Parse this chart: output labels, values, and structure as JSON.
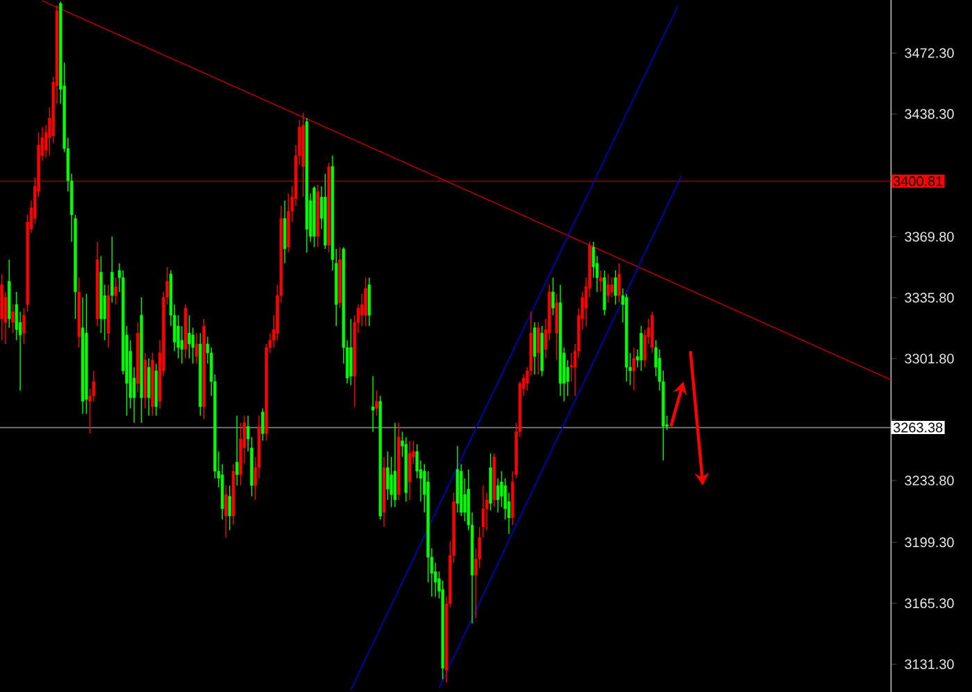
{
  "chart_data": {
    "type": "candlestick",
    "categories": [
      null,
      null,
      null,
      null,
      null,
      null,
      null,
      null,
      null,
      null,
      null,
      null,
      null,
      null,
      null,
      null,
      null,
      null,
      null,
      null,
      null,
      null,
      null,
      null,
      null,
      null,
      null,
      null,
      null,
      null,
      null,
      null,
      null,
      null,
      null,
      null,
      null,
      null,
      null,
      null,
      null,
      null,
      null,
      null,
      null,
      null,
      null,
      null,
      null,
      null,
      null,
      null,
      null,
      null,
      null,
      null,
      null,
      null,
      null,
      null,
      null,
      null,
      null,
      null,
      null,
      null,
      null,
      null,
      null,
      null,
      null,
      null,
      null,
      null,
      null,
      null,
      null,
      null,
      null,
      null,
      null,
      null,
      null,
      null,
      null,
      null,
      null,
      null,
      null,
      null,
      null,
      null,
      null,
      null,
      null,
      null,
      null,
      null,
      null,
      null,
      null,
      null,
      null,
      null,
      null,
      null,
      null,
      null,
      null,
      null,
      null,
      null,
      null,
      null,
      null,
      null,
      null,
      null,
      null,
      null,
      null,
      null,
      null,
      null,
      null,
      null,
      null,
      null,
      null,
      null,
      null,
      null,
      null,
      null,
      null,
      null,
      null,
      null,
      null,
      null,
      null,
      null,
      null,
      null,
      null,
      null,
      null,
      null,
      null,
      null,
      null,
      null,
      null,
      null,
      null,
      null,
      null,
      null,
      null,
      null,
      null,
      null,
      null,
      null,
      null,
      null,
      null,
      null,
      null,
      null,
      null,
      null,
      null,
      null,
      null,
      null,
      null,
      null,
      null,
      null,
      null,
      null,
      null,
      null,
      null,
      null,
      null,
      null,
      null,
      null,
      null,
      null,
      null,
      null,
      null,
      null,
      null,
      null,
      null,
      null,
      null,
      null,
      null,
      null,
      null,
      null,
      null,
      null,
      null,
      null,
      null,
      null,
      null,
      null,
      null,
      null,
      null,
      null,
      null,
      null,
      null,
      null,
      null,
      null,
      null,
      null,
      null,
      null,
      null,
      null,
      null,
      null,
      null,
      null,
      null,
      null,
      null,
      null,
      null,
      null,
      null,
      null,
      null
    ],
    "ohlc": [
      [
        3324,
        3349,
        3312,
        3343
      ],
      [
        3322,
        3339,
        3310,
        3336
      ],
      [
        3345,
        3357,
        3319,
        3324
      ],
      [
        3322,
        3332,
        3316,
        3328
      ],
      [
        3332,
        3339,
        3312,
        3318
      ],
      [
        3322,
        3328,
        3284,
        3315
      ],
      [
        3316,
        3330,
        3310,
        3326
      ],
      [
        3332,
        3382,
        3328,
        3378
      ],
      [
        3374,
        3390,
        3372,
        3386
      ],
      [
        3380,
        3403,
        3377,
        3398
      ],
      [
        3395,
        3428,
        3392,
        3421
      ],
      [
        3415,
        3431,
        3412,
        3425
      ],
      [
        3418,
        3432,
        3414,
        3428
      ],
      [
        3425,
        3442,
        3415,
        3436
      ],
      [
        3426,
        3459,
        3422,
        3456
      ],
      [
        3454,
        3499,
        3444,
        3496
      ],
      [
        3500,
        3501,
        3444,
        3452
      ],
      [
        3454,
        3467,
        3417,
        3419
      ],
      [
        3419,
        3425,
        3395,
        3401
      ],
      [
        3401,
        3405,
        3367,
        3382
      ],
      [
        3380,
        3382,
        3324,
        3339
      ],
      [
        3314,
        3347,
        3308,
        3339
      ],
      [
        3319,
        3336,
        3271,
        3278
      ],
      [
        3316,
        3338,
        3271,
        3279
      ],
      [
        3278,
        3285,
        3260,
        3281
      ],
      [
        3281,
        3295,
        3278,
        3289
      ],
      [
        3324,
        3367,
        3320,
        3357
      ],
      [
        3350,
        3359,
        3316,
        3324
      ],
      [
        3337,
        3343,
        3312,
        3324
      ],
      [
        3316,
        3343,
        3308,
        3337
      ],
      [
        3350,
        3370,
        3333,
        3337
      ],
      [
        3337,
        3347,
        3332,
        3342
      ],
      [
        3351,
        3355,
        3339,
        3347
      ],
      [
        3347,
        3351,
        3293,
        3295
      ],
      [
        3315,
        3320,
        3270,
        3288
      ],
      [
        3306,
        3312,
        3274,
        3280
      ],
      [
        3291,
        3297,
        3266,
        3280
      ],
      [
        3288,
        3322,
        3283,
        3316
      ],
      [
        3326,
        3336,
        3266,
        3280
      ],
      [
        3280,
        3305,
        3274,
        3301
      ],
      [
        3297,
        3302,
        3270,
        3280
      ],
      [
        3275,
        3305,
        3270,
        3301
      ],
      [
        3295,
        3299,
        3270,
        3275
      ],
      [
        3278,
        3312,
        3274,
        3305
      ],
      [
        3295,
        3339,
        3292,
        3336
      ],
      [
        3336,
        3353,
        3332,
        3345
      ],
      [
        3349,
        3351,
        3320,
        3326
      ],
      [
        3326,
        3332,
        3306,
        3311
      ],
      [
        3320,
        3326,
        3302,
        3308
      ],
      [
        3312,
        3320,
        3299,
        3307
      ],
      [
        3307,
        3332,
        3302,
        3330
      ],
      [
        3316,
        3326,
        3302,
        3310
      ],
      [
        3315,
        3319,
        3299,
        3308
      ],
      [
        3303,
        3316,
        3299,
        3310
      ],
      [
        3310,
        3316,
        3270,
        3275
      ],
      [
        3275,
        3324,
        3268,
        3320
      ],
      [
        3310,
        3314,
        3299,
        3305
      ],
      [
        3305,
        3308,
        3281,
        3289
      ],
      [
        3289,
        3293,
        3235,
        3239
      ],
      [
        3239,
        3250,
        3230,
        3235
      ],
      [
        3237,
        3243,
        3212,
        3218
      ],
      [
        3214,
        3231,
        3202,
        3226
      ],
      [
        3225,
        3231,
        3206,
        3214
      ],
      [
        3214,
        3243,
        3209,
        3239
      ],
      [
        3244,
        3270,
        3231,
        3237
      ],
      [
        3237,
        3266,
        3231,
        3257
      ],
      [
        3252,
        3270,
        3243,
        3266
      ],
      [
        3264,
        3270,
        3250,
        3257
      ],
      [
        3252,
        3258,
        3225,
        3231
      ],
      [
        3231,
        3247,
        3223,
        3241
      ],
      [
        3241,
        3270,
        3235,
        3264
      ],
      [
        3272,
        3274,
        3256,
        3260
      ],
      [
        3260,
        3310,
        3256,
        3308
      ],
      [
        3308,
        3316,
        3305,
        3312
      ],
      [
        3312,
        3326,
        3308,
        3318
      ],
      [
        3316,
        3343,
        3312,
        3337
      ],
      [
        3337,
        3387,
        3333,
        3380
      ],
      [
        3380,
        3390,
        3355,
        3363
      ],
      [
        3364,
        3394,
        3361,
        3384
      ],
      [
        3384,
        3398,
        3378,
        3392
      ],
      [
        3391,
        3421,
        3387,
        3415
      ],
      [
        3415,
        3435,
        3410,
        3431
      ],
      [
        3409,
        3439,
        3392,
        3432
      ],
      [
        3434,
        3436,
        3361,
        3374
      ],
      [
        3390,
        3394,
        3367,
        3370
      ],
      [
        3397,
        3398,
        3364,
        3370
      ],
      [
        3370,
        3399,
        3364,
        3395
      ],
      [
        3392,
        3398,
        3374,
        3380
      ],
      [
        3392,
        3405,
        3363,
        3365
      ],
      [
        3365,
        3411,
        3361,
        3409
      ],
      [
        3409,
        3415,
        3351,
        3357
      ],
      [
        3355,
        3363,
        3320,
        3332
      ],
      [
        3333,
        3364,
        3330,
        3357
      ],
      [
        3363,
        3364,
        3299,
        3308
      ],
      [
        3308,
        3312,
        3288,
        3291
      ],
      [
        3308,
        3324,
        3287,
        3292
      ],
      [
        3292,
        3326,
        3275,
        3322
      ],
      [
        3322,
        3332,
        3316,
        3330
      ],
      [
        3326,
        3338,
        3320,
        3332
      ],
      [
        3326,
        3347,
        3320,
        3341
      ],
      [
        3343,
        3347,
        3320,
        3326
      ],
      [
        3275,
        3292,
        3261,
        3273
      ],
      [
        3274,
        3284,
        3270,
        3278
      ],
      [
        3278,
        3281,
        3212,
        3214
      ],
      [
        3216,
        3247,
        3208,
        3241
      ],
      [
        3241,
        3250,
        3223,
        3229
      ],
      [
        3237,
        3247,
        3219,
        3226
      ],
      [
        3239,
        3266,
        3219,
        3223
      ],
      [
        3226,
        3266,
        3223,
        3258
      ],
      [
        3256,
        3261,
        3247,
        3253
      ],
      [
        3254,
        3258,
        3222,
        3227
      ],
      [
        3233,
        3256,
        3223,
        3249
      ],
      [
        3247,
        3256,
        3243,
        3250
      ],
      [
        3250,
        3254,
        3235,
        3239
      ],
      [
        3240,
        3245,
        3222,
        3235
      ],
      [
        3239,
        3243,
        3216,
        3226
      ],
      [
        3233,
        3239,
        3177,
        3191
      ],
      [
        3191,
        3196,
        3169,
        3182
      ],
      [
        3183,
        3188,
        3169,
        3177
      ],
      [
        3179,
        3183,
        3168,
        3172
      ],
      [
        3173,
        3178,
        3123,
        3129
      ],
      [
        3128,
        3169,
        3121,
        3165
      ],
      [
        3165,
        3200,
        3163,
        3192
      ],
      [
        3192,
        3227,
        3188,
        3222
      ],
      [
        3240,
        3253,
        3216,
        3221
      ],
      [
        3239,
        3243,
        3214,
        3216
      ],
      [
        3226,
        3235,
        3211,
        3216
      ],
      [
        3229,
        3240,
        3206,
        3209
      ],
      [
        3209,
        3216,
        3154,
        3181
      ],
      [
        3181,
        3196,
        3157,
        3190
      ],
      [
        3190,
        3208,
        3185,
        3202
      ],
      [
        3208,
        3231,
        3202,
        3218
      ],
      [
        3218,
        3227,
        3206,
        3223
      ],
      [
        3241,
        3249,
        3217,
        3221
      ],
      [
        3223,
        3249,
        3219,
        3247
      ],
      [
        3231,
        3235,
        3216,
        3223
      ],
      [
        3233,
        3239,
        3219,
        3225
      ],
      [
        3231,
        3235,
        3212,
        3218
      ],
      [
        3222,
        3227,
        3204,
        3213
      ],
      [
        3213,
        3239,
        3209,
        3233
      ],
      [
        3237,
        3266,
        3235,
        3261
      ],
      [
        3261,
        3289,
        3258,
        3288
      ],
      [
        3285,
        3293,
        3281,
        3291
      ],
      [
        3288,
        3297,
        3284,
        3295
      ],
      [
        3295,
        3328,
        3292,
        3316
      ],
      [
        3319,
        3322,
        3293,
        3303
      ],
      [
        3305,
        3322,
        3293,
        3319
      ],
      [
        3316,
        3320,
        3292,
        3295
      ],
      [
        3307,
        3324,
        3302,
        3318
      ],
      [
        3316,
        3343,
        3312,
        3339
      ],
      [
        3339,
        3347,
        3326,
        3330
      ],
      [
        3316,
        3338,
        3301,
        3333
      ],
      [
        3333,
        3343,
        3281,
        3288
      ],
      [
        3305,
        3308,
        3278,
        3288
      ],
      [
        3297,
        3301,
        3281,
        3289
      ],
      [
        3297,
        3305,
        3289,
        3298
      ],
      [
        3297,
        3310,
        3281,
        3306
      ],
      [
        3306,
        3330,
        3302,
        3326
      ],
      [
        3324,
        3339,
        3318,
        3336
      ],
      [
        3330,
        3347,
        3320,
        3342
      ],
      [
        3341,
        3367,
        3336,
        3365
      ],
      [
        3364,
        3367,
        3347,
        3353
      ],
      [
        3355,
        3359,
        3339,
        3347
      ],
      [
        3345,
        3351,
        3339,
        3347
      ],
      [
        3347,
        3351,
        3326,
        3329
      ],
      [
        3337,
        3349,
        3333,
        3343
      ],
      [
        3339,
        3347,
        3336,
        3343
      ],
      [
        3347,
        3351,
        3332,
        3337
      ],
      [
        3337,
        3355,
        3333,
        3349
      ],
      [
        3337,
        3341,
        3322,
        3332
      ],
      [
        3336,
        3338,
        3289,
        3297
      ],
      [
        3297,
        3305,
        3287,
        3295
      ],
      [
        3295,
        3308,
        3284,
        3302
      ],
      [
        3303,
        3307,
        3297,
        3301
      ],
      [
        3316,
        3320,
        3295,
        3301
      ],
      [
        3301,
        3318,
        3297,
        3315
      ],
      [
        3314,
        3324,
        3310,
        3319
      ],
      [
        3308,
        3328,
        3305,
        3326
      ],
      [
        3308,
        3312,
        3292,
        3297
      ],
      [
        3302,
        3307,
        3284,
        3289
      ],
      [
        3289,
        3295,
        3245,
        3264
      ],
      [
        3265,
        3270,
        3262,
        3264
      ],
      null,
      null,
      null,
      null,
      null,
      null,
      null,
      null,
      null,
      null,
      null,
      null,
      null,
      null,
      null,
      null,
      null,
      null,
      null,
      null,
      null,
      null,
      null,
      null,
      null,
      null,
      null,
      null,
      null,
      null,
      null,
      null,
      null,
      null,
      null,
      null,
      null,
      null,
      null,
      null,
      null,
      null,
      null,
      null,
      null,
      null,
      null,
      null,
      null,
      null,
      null,
      null,
      null,
      null,
      null,
      null,
      null,
      null,
      null,
      null,
      null
    ],
    "colors": [
      "#ff0000",
      "#ff0000",
      "#00ff00",
      "#ff0000",
      "#00ff00",
      "#00ff00",
      "#ff0000",
      "#ff0000",
      "#ff0000",
      "#ff0000",
      "#ff0000",
      "#ff0000",
      "#ff0000",
      "#ff0000",
      "#ff0000",
      "#ff0000",
      "#00ff00",
      "#00ff00",
      "#00ff00",
      "#00ff00",
      "#00ff00",
      "#ff0000",
      "#00ff00",
      "#00ff00",
      "#ff0000",
      "#ff0000",
      "#ff0000",
      "#00ff00",
      "#00ff00",
      "#ff0000",
      "#00ff00",
      "#ff0000",
      "#00ff00",
      "#00ff00",
      "#00ff00",
      "#00ff00",
      "#00ff00",
      "#ff0000",
      "#00ff00",
      "#ff0000",
      "#00ff00",
      "#ff0000",
      "#00ff00",
      "#ff0000",
      "#ff0000",
      "#ff0000",
      "#00ff00",
      "#00ff00",
      "#00ff00",
      "#00ff00",
      "#ff0000",
      "#00ff00",
      "#00ff00",
      "#ff0000",
      "#00ff00",
      "#ff0000",
      "#00ff00",
      "#00ff00",
      "#00ff00",
      "#00ff00",
      "#00ff00",
      "#ff0000",
      "#00ff00",
      "#ff0000",
      "#00ff00",
      "#ff0000",
      "#ff0000",
      "#00ff00",
      "#00ff00",
      "#ff0000",
      "#ff0000",
      "#00ff00",
      "#ff0000",
      "#ff0000",
      "#ff0000",
      "#ff0000",
      "#ff0000",
      "#00ff00",
      "#ff0000",
      "#ff0000",
      "#ff0000",
      "#ff0000",
      "#ff0000",
      "#00ff00",
      "#00ff00",
      "#00ff00",
      "#ff0000",
      "#00ff00",
      "#00ff00",
      "#ff0000",
      "#00ff00",
      "#00ff00",
      "#ff0000",
      "#00ff00",
      "#00ff00",
      "#00ff00",
      "#ff0000",
      "#ff0000",
      "#ff0000",
      "#ff0000",
      "#00ff00",
      "#00ff00",
      "#ff0000",
      "#00ff00",
      "#ff0000",
      "#00ff00",
      "#00ff00",
      "#00ff00",
      "#ff0000",
      "#00ff00",
      "#00ff00",
      "#ff0000",
      "#ff0000",
      "#00ff00",
      "#00ff00",
      "#00ff00",
      "#00ff00",
      "#00ff00",
      "#00ff00",
      "#00ff00",
      "#00ff00",
      "#ff0000",
      "#ff0000",
      "#ff0000",
      "#00ff00",
      "#00ff00",
      "#00ff00",
      "#00ff00",
      "#00ff00",
      "#ff0000",
      "#ff0000",
      "#ff0000",
      "#ff0000",
      "#00ff00",
      "#ff0000",
      "#00ff00",
      "#00ff00",
      "#00ff00",
      "#00ff00",
      "#ff0000",
      "#ff0000",
      "#ff0000",
      "#ff0000",
      "#ff0000",
      "#ff0000",
      "#00ff00",
      "#ff0000",
      "#00ff00",
      "#ff0000",
      "#ff0000",
      "#00ff00",
      "#ff0000",
      "#00ff00",
      "#00ff00",
      "#00ff00",
      "#ff0000",
      "#ff0000",
      "#ff0000",
      "#ff0000",
      "#ff0000",
      "#ff0000",
      "#00ff00",
      "#00ff00",
      "#ff0000",
      "#00ff00",
      "#ff0000",
      "#ff0000",
      "#00ff00",
      "#ff0000",
      "#00ff00",
      "#00ff00",
      "#00ff00",
      "#ff0000",
      "#00ff00",
      "#00ff00",
      "#ff0000",
      "#ff0000",
      "#ff0000",
      "#00ff00",
      "#00ff00",
      "#00ff00",
      "#00ff00",
      null,
      null,
      null,
      null,
      null,
      null,
      null,
      null,
      null,
      null,
      null,
      null,
      null,
      null,
      null,
      null,
      null,
      null,
      null,
      null,
      null,
      null,
      null,
      null,
      null,
      null,
      null,
      null,
      null,
      null,
      null,
      null,
      null,
      null,
      null,
      null,
      null,
      null,
      null,
      null,
      null,
      null,
      null,
      null,
      null,
      null,
      null,
      null,
      null,
      null,
      null,
      null,
      null,
      null,
      null,
      null,
      null,
      null,
      null,
      null,
      null
    ],
    "ylim": [
      3115.8,
      3501.9
    ],
    "yticks": [
      {
        "value": 3131.3,
        "label": "3131.30"
      },
      {
        "value": 3165.3,
        "label": "3165.30"
      },
      {
        "value": 3199.3,
        "label": "3199.30"
      },
      {
        "value": 3233.8,
        "label": "3233.80"
      },
      {
        "value": 3267.8,
        "label": null
      },
      {
        "value": 3301.8,
        "label": "3301.80"
      },
      {
        "value": 3335.8,
        "label": "3335.80"
      },
      {
        "value": 3369.8,
        "label": "3369.80"
      },
      {
        "value": 3404.3,
        "label": null
      },
      {
        "value": 3438.3,
        "label": "3438.30"
      },
      {
        "value": 3472.3,
        "label": "3472.30"
      }
    ],
    "tick_labels": "y",
    "ref_lines": [
      {
        "axis": "y",
        "value": 3400.81,
        "label": "3400.81",
        "color": "#800000"
      },
      {
        "axis": "y",
        "value": 3263.38,
        "label": "3263.38",
        "color": "#808080"
      }
    ],
    "series": [
      {
        "type": "line",
        "color": "#b00000",
        "values": [
          null,
          null,
          null,
          null,
          null,
          null,
          null,
          null,
          null,
          null,
          null,
          3501.5,
          null,
          null,
          null,
          null,
          null,
          null,
          null,
          null,
          null,
          null,
          null,
          null,
          null,
          null,
          null,
          null,
          null,
          null,
          null,
          null,
          null,
          null,
          null,
          null,
          null,
          null,
          null,
          null,
          null,
          null,
          null,
          null,
          null,
          null,
          null,
          null,
          null,
          null,
          null,
          null,
          null,
          null,
          null,
          null,
          null,
          null,
          null,
          null,
          null,
          null,
          null,
          null,
          null,
          null,
          null,
          null,
          null,
          null,
          null,
          null,
          null,
          null,
          null,
          null,
          null,
          null,
          null,
          null,
          null,
          null,
          null,
          null,
          null,
          null,
          null,
          null,
          null,
          null,
          null,
          null,
          null,
          null,
          null,
          null,
          null,
          null,
          null,
          null,
          null,
          null,
          null,
          null,
          null,
          null,
          null,
          null,
          null,
          null,
          null,
          null,
          null,
          null,
          null,
          null,
          null,
          null,
          null,
          null,
          null,
          null,
          null,
          null,
          null,
          null,
          null,
          null,
          null,
          null,
          null,
          null,
          null,
          null,
          null,
          null,
          null,
          null,
          null,
          null,
          null,
          null,
          null,
          null,
          null,
          null,
          null,
          null,
          null,
          null,
          null,
          null,
          null,
          null,
          null,
          null,
          null,
          null,
          null,
          null,
          null,
          null,
          null,
          null,
          null,
          null,
          null,
          null,
          null,
          null,
          null,
          null,
          null,
          null,
          null,
          null,
          null,
          null,
          null,
          null,
          null,
          null,
          null,
          null,
          null,
          null,
          null,
          null,
          null,
          null,
          null,
          null,
          null,
          null,
          null,
          null,
          null,
          null,
          null,
          null,
          null,
          null,
          null,
          null,
          null,
          null,
          null,
          null,
          null,
          null,
          null,
          null,
          null,
          null,
          null,
          null,
          null,
          null,
          null,
          null,
          null,
          null,
          null,
          null,
          null,
          null,
          null,
          null,
          null,
          null,
          null,
          null,
          null,
          null,
          null,
          null,
          null,
          null,
          null,
          null,
          null,
          null,
          3290
        ]
      },
      {
        "type": "line",
        "color": "#0000c8",
        "values": [
          null,
          null,
          null,
          null,
          null,
          null,
          null,
          null,
          null,
          null,
          null,
          null,
          null,
          null,
          null,
          null,
          null,
          null,
          null,
          null,
          null,
          null,
          null,
          null,
          null,
          null,
          null,
          null,
          null,
          null,
          null,
          null,
          null,
          null,
          null,
          null,
          null,
          null,
          null,
          null,
          null,
          null,
          null,
          null,
          null,
          null,
          null,
          null,
          null,
          null,
          null,
          null,
          null,
          null,
          null,
          null,
          null,
          null,
          null,
          null,
          null,
          null,
          null,
          null,
          null,
          null,
          null,
          null,
          null,
          null,
          null,
          null,
          null,
          null,
          null,
          null,
          null,
          null,
          null,
          null,
          null,
          null,
          null,
          null,
          null,
          null,
          null,
          null,
          null,
          null,
          null,
          null,
          null,
          null,
          null,
          3117.1,
          null,
          null,
          null,
          null,
          null,
          null,
          null,
          null,
          null,
          null,
          null,
          null,
          null,
          null,
          null,
          null,
          null,
          null,
          null,
          null,
          null,
          null,
          null,
          null,
          null,
          null,
          null,
          null,
          null,
          null,
          null,
          null,
          null,
          null,
          null,
          null,
          null,
          null,
          null,
          null,
          null,
          null,
          null,
          null,
          null,
          null,
          null,
          null,
          null,
          null,
          null,
          null,
          null,
          null,
          null,
          null,
          null,
          null,
          null,
          null,
          null,
          null,
          null,
          null,
          null,
          null,
          null,
          null,
          null,
          null,
          null,
          null,
          null,
          null,
          null,
          null,
          null,
          null,
          null,
          null,
          null,
          null,
          null,
          null,
          null,
          null,
          null,
          null,
          3498.5,
          null,
          null,
          null,
          null,
          null,
          null,
          null,
          null,
          null,
          null,
          null,
          null,
          null,
          null,
          null,
          null,
          null,
          null,
          null,
          null,
          null,
          null,
          null,
          null,
          null,
          null,
          null,
          null,
          null,
          null,
          null,
          null,
          null,
          null,
          null,
          null,
          null,
          null,
          null,
          null,
          null,
          null,
          null,
          null,
          null,
          null,
          null,
          null,
          null,
          null,
          null,
          null,
          null,
          null,
          null,
          null,
          null,
          null
        ]
      },
      {
        "type": "line",
        "color": "#0000c8",
        "values": [
          null,
          null,
          null,
          null,
          null,
          null,
          null,
          null,
          null,
          null,
          null,
          null,
          null,
          null,
          null,
          null,
          null,
          null,
          null,
          null,
          null,
          null,
          null,
          null,
          null,
          null,
          null,
          null,
          null,
          null,
          null,
          null,
          null,
          null,
          null,
          null,
          null,
          null,
          null,
          null,
          null,
          null,
          null,
          null,
          null,
          null,
          null,
          null,
          null,
          null,
          null,
          null,
          null,
          null,
          null,
          null,
          null,
          null,
          null,
          null,
          null,
          null,
          null,
          null,
          null,
          null,
          null,
          null,
          null,
          null,
          null,
          null,
          null,
          null,
          null,
          null,
          null,
          null,
          null,
          null,
          null,
          null,
          null,
          null,
          null,
          null,
          null,
          null,
          null,
          null,
          null,
          null,
          null,
          null,
          null,
          null,
          null,
          null,
          null,
          null,
          null,
          null,
          null,
          null,
          null,
          null,
          null,
          null,
          null,
          null,
          null,
          null,
          null,
          null,
          null,
          null,
          null,
          null,
          null,
          3118,
          null,
          null,
          null,
          null,
          null,
          null,
          null,
          null,
          null,
          null,
          null,
          null,
          null,
          null,
          null,
          null,
          null,
          null,
          null,
          null,
          null,
          null,
          null,
          null,
          null,
          null,
          null,
          null,
          null,
          null,
          null,
          null,
          null,
          null,
          null,
          null,
          null,
          null,
          null,
          null,
          null,
          null,
          null,
          null,
          null,
          null,
          null,
          null,
          null,
          null,
          null,
          null,
          null,
          null,
          null,
          null,
          null,
          null,
          null,
          null,
          null,
          null,
          null,
          null,
          null,
          3404,
          null,
          null,
          null,
          null,
          null,
          null,
          null,
          null,
          null,
          null,
          null,
          null,
          null,
          null,
          null,
          null,
          null,
          null,
          null,
          null,
          null,
          null,
          null,
          null,
          null,
          null,
          null,
          null,
          null,
          null,
          null,
          null,
          null,
          null,
          null,
          null,
          null,
          null,
          null,
          null,
          null,
          null,
          null,
          null,
          null,
          null,
          null,
          null,
          null,
          null,
          null,
          null,
          null,
          null,
          null,
          null,
          null
        ]
      }
    ]
  }
}
